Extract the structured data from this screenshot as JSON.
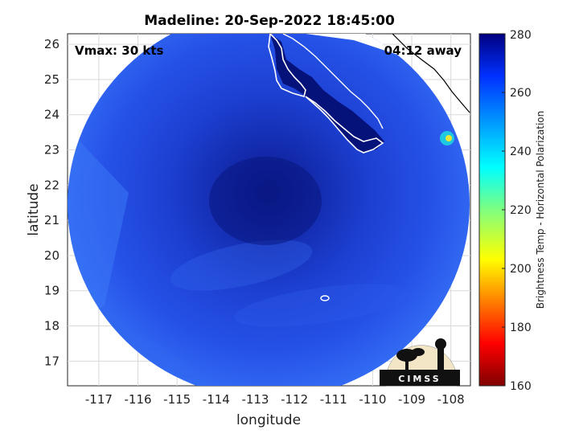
{
  "title": "Madeline: 20-Sep-2022 18:45:00",
  "annotations": {
    "vmax": "Vmax: 30 kts",
    "time_away": "04:12 away"
  },
  "axes": {
    "xlabel": "longitude",
    "ylabel": "latitude",
    "xlim": [
      -117.8,
      -107.5
    ],
    "ylim": [
      16.3,
      26.3
    ],
    "xticks": [
      "-117",
      "-116",
      "-115",
      "-114",
      "-113",
      "-112",
      "-111",
      "-110",
      "-109",
      "-108"
    ],
    "yticks": [
      "17",
      "18",
      "19",
      "20",
      "21",
      "22",
      "23",
      "24",
      "25",
      "26"
    ],
    "grid": true
  },
  "colorbar": {
    "label": "Brightness Temp - Horizontal Polarization",
    "range": [
      160,
      280
    ],
    "ticks": [
      "280",
      "260",
      "240",
      "220",
      "200",
      "180",
      "160"
    ],
    "colormap": "jet"
  },
  "logo": {
    "text": "CIMSS"
  },
  "colors": {
    "eye_core": "#0a1a80",
    "outer": "#2a5cf0",
    "land": "#04106a",
    "coast": "#ffffff"
  }
}
